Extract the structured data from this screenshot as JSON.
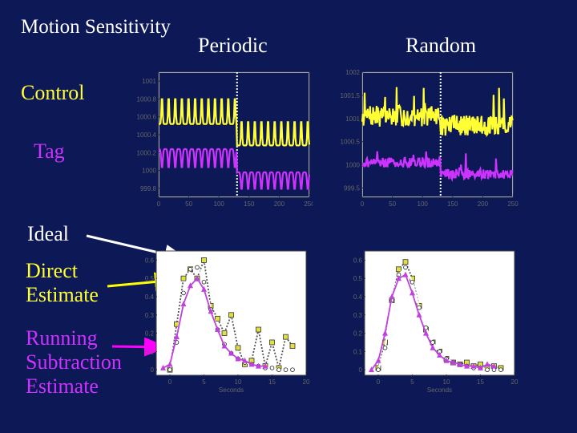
{
  "slide": {
    "title": "Motion Sensitivity",
    "col_periodic": "Periodic",
    "col_random": "Random",
    "label_control": "Control",
    "label_tag": "Tag",
    "label_ideal": "Ideal",
    "label_direct": "Direct Estimate",
    "label_running": "Running Subtraction Estimate"
  },
  "colors": {
    "background": "#0d1856",
    "plot_bg": "#ffffff",
    "control": "#ffff33",
    "tag": "#cc33ff",
    "ideal": "#ffffff",
    "direct": "#e0e040",
    "running": "#c040e0",
    "arrow_ideal": "#ffffff",
    "arrow_direct": "#ffff00",
    "arrow_running": "#ff00ff"
  },
  "chart_data": [
    {
      "id": "periodic-timeseries",
      "type": "line",
      "xlim": [
        0,
        250
      ],
      "ylim": [
        999.7,
        1001.1
      ],
      "x_ticks": [
        0,
        50,
        100,
        150,
        200,
        250
      ],
      "y_ticks": [
        999.8,
        1000,
        1000.2,
        1000.4,
        1000.6,
        1000.8,
        1001
      ],
      "y_tick_labels": [
        "999.8",
        "1000",
        "1000.2",
        "1000.4",
        "1000.6",
        "1000.8",
        "1001"
      ],
      "marker_line_x": 130,
      "series": [
        {
          "color_key": "control",
          "kind": "periodic",
          "period": 11,
          "base_before": 1000.68,
          "amp_before": 0.32,
          "base_after": 1000.43,
          "amp_after": 0.3,
          "width": 2.2
        },
        {
          "color_key": "tag",
          "kind": "periodic_dip",
          "period": 11,
          "base_before": 1000.24,
          "amp_before": 0.22,
          "base_after": 999.98,
          "amp_after": 0.2,
          "width": 2.2
        }
      ]
    },
    {
      "id": "random-timeseries",
      "type": "line",
      "xlim": [
        0,
        250
      ],
      "ylim": [
        999.3,
        1002.0
      ],
      "x_ticks": [
        0,
        50,
        100,
        150,
        200,
        250
      ],
      "y_ticks": [
        999.5,
        1000,
        1000.5,
        1001,
        1001.5,
        1002
      ],
      "y_tick_labels": [
        "999.5",
        "1000",
        "1000.5",
        "1001",
        "1001.5",
        "1002"
      ],
      "marker_line_x": 130,
      "series": [
        {
          "color_key": "control",
          "kind": "random",
          "base_before": 1001.05,
          "base_after": 1000.85,
          "spread": 0.45,
          "seed": 7,
          "width": 2.2
        },
        {
          "color_key": "tag",
          "kind": "random",
          "base_before": 1000.05,
          "base_after": 999.8,
          "spread": 0.22,
          "seed": 21,
          "width": 2.2
        }
      ]
    },
    {
      "id": "periodic-estimates",
      "type": "line",
      "xlabel": "Seconds",
      "xlim": [
        -2,
        20
      ],
      "ylim": [
        -0.03,
        0.65
      ],
      "x_ticks": [
        0,
        5,
        10,
        15,
        20
      ],
      "y_ticks": [
        0,
        0.1,
        0.2,
        0.3,
        0.4,
        0.5,
        0.6
      ],
      "series": [
        {
          "name": "Direct Estimate",
          "color_key": "direct",
          "marker": "square",
          "dashed": true,
          "x": [
            0,
            1,
            2,
            3,
            4,
            5,
            6,
            7,
            8,
            9,
            10,
            11,
            12,
            13,
            14,
            15,
            16,
            17,
            18
          ],
          "y": [
            0.0,
            0.25,
            0.5,
            0.55,
            0.5,
            0.6,
            0.35,
            0.28,
            0.2,
            0.3,
            0.12,
            0.03,
            0.05,
            0.22,
            0.02,
            0.15,
            0.01,
            0.18,
            0.13
          ]
        },
        {
          "name": "Ideal",
          "color_key": "ideal",
          "marker": "dot",
          "dashed": false,
          "x": [
            0,
            1,
            2,
            3,
            4,
            5,
            6,
            7,
            8,
            9,
            10,
            11,
            12,
            13,
            14,
            15,
            16,
            17,
            18
          ],
          "y": [
            0.0,
            0.15,
            0.42,
            0.55,
            0.56,
            0.48,
            0.33,
            0.22,
            0.14,
            0.09,
            0.06,
            0.04,
            0.03,
            0.02,
            0.01,
            0.01,
            0.0,
            0.0,
            0.0
          ]
        },
        {
          "name": "Running Subtraction Estimate",
          "color_key": "running",
          "marker": "triangle",
          "dashed": false,
          "x": [
            -1,
            0,
            1,
            2,
            3,
            4,
            5,
            6,
            7,
            8,
            9,
            10,
            11,
            12,
            13,
            14
          ],
          "y": [
            0.01,
            0.03,
            0.18,
            0.36,
            0.46,
            0.5,
            0.44,
            0.32,
            0.22,
            0.13,
            0.09,
            0.06,
            0.05,
            0.03,
            0.02,
            0.02
          ]
        }
      ]
    },
    {
      "id": "random-estimates",
      "type": "line",
      "xlabel": "Seconds",
      "xlim": [
        -2,
        20
      ],
      "ylim": [
        -0.03,
        0.65
      ],
      "x_ticks": [
        0,
        5,
        10,
        15,
        20
      ],
      "y_ticks": [
        0,
        0.1,
        0.2,
        0.3,
        0.4,
        0.5,
        0.6
      ],
      "series": [
        {
          "name": "Direct Estimate",
          "color_key": "direct",
          "marker": "square",
          "dashed": true,
          "x": [
            0,
            1,
            2,
            3,
            4,
            5,
            6,
            7,
            8,
            9,
            10,
            11,
            12,
            13,
            14,
            15,
            16,
            17,
            18
          ],
          "y": [
            0.01,
            0.15,
            0.38,
            0.55,
            0.59,
            0.5,
            0.35,
            0.22,
            0.15,
            0.1,
            0.06,
            0.04,
            0.03,
            0.04,
            0.02,
            0.03,
            0.01,
            0.02,
            0.01
          ]
        },
        {
          "name": "Ideal",
          "color_key": "ideal",
          "marker": "dot",
          "dashed": false,
          "x": [
            0,
            1,
            2,
            3,
            4,
            5,
            6,
            7,
            8,
            9,
            10,
            11,
            12,
            13,
            14,
            15,
            16,
            17,
            18
          ],
          "y": [
            0.0,
            0.12,
            0.38,
            0.52,
            0.56,
            0.48,
            0.34,
            0.23,
            0.15,
            0.1,
            0.06,
            0.04,
            0.03,
            0.02,
            0.01,
            0.01,
            0.0,
            0.0,
            0.0
          ]
        },
        {
          "name": "Running Subtraction Estimate",
          "color_key": "running",
          "marker": "triangle",
          "dashed": false,
          "x": [
            -1,
            0,
            1,
            2,
            3,
            4,
            5,
            6,
            7,
            8,
            9,
            10,
            11,
            12,
            13,
            14,
            15,
            16,
            17
          ],
          "y": [
            0.0,
            0.05,
            0.2,
            0.4,
            0.5,
            0.52,
            0.42,
            0.3,
            0.2,
            0.12,
            0.08,
            0.05,
            0.04,
            0.03,
            0.02,
            0.02,
            0.01,
            0.03,
            0.02
          ]
        }
      ]
    }
  ]
}
